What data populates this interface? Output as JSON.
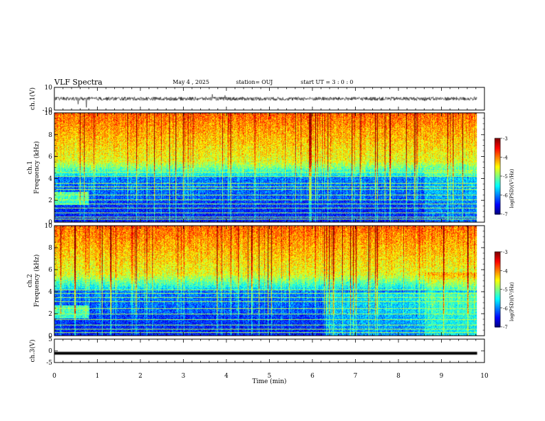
{
  "header": {
    "title": "VLF Spectra",
    "date": "May 4  , 2025",
    "station": "station= OUJ",
    "start": "start  UT =   3 : 0  : 0"
  },
  "colors": {
    "spectrum_low": "#00008b",
    "spectrum_mid": "#00ff80",
    "spectrum_high": "#ff0000",
    "trace": "#000000"
  },
  "chart_data": [
    {
      "type": "line",
      "panel": "ch1-waveform",
      "ylabel": "ch.1(V)",
      "ylim": [
        -10,
        10
      ],
      "yticks": [
        "10",
        "-10"
      ],
      "xlim": [
        0,
        10
      ],
      "description_series": [
        {
          "x": [
            0,
            9.83
          ],
          "y": [
            0,
            0
          ]
        }
      ]
    },
    {
      "type": "heatmap",
      "panel": "ch1-spectrogram",
      "ylabel": "ch.1\nFrequency (kHz)",
      "ylim": [
        0,
        10
      ],
      "yticks": [
        "0",
        "2",
        "4",
        "6",
        "8",
        "10"
      ],
      "xlim": [
        0,
        10
      ],
      "data_extent_x": 9.83,
      "colorbar": {
        "label": "log(PSD)(V²/Hz)",
        "range": [
          -7,
          -3
        ],
        "ticks": [
          "-3",
          "-4",
          "-5",
          "-6",
          "-7"
        ]
      },
      "lines_khz": [
        0.3,
        0.5,
        0.9,
        1.3,
        1.7,
        2.1,
        2.5,
        3.0,
        3.3,
        3.6,
        4.2,
        4.6
      ]
    },
    {
      "type": "heatmap",
      "panel": "ch2-spectrogram",
      "ylabel": "ch.2\nFrequency (kHz)",
      "ylim": [
        0,
        10
      ],
      "yticks": [
        "0",
        "2",
        "4",
        "6",
        "8",
        "10"
      ],
      "xlim": [
        0,
        10
      ],
      "data_extent_x": 9.83,
      "colorbar": {
        "label": "log(PSD)(V²/Hz)",
        "range": [
          -7,
          -3
        ],
        "ticks": [
          "-3",
          "-4",
          "-5",
          "-6",
          "-7"
        ]
      },
      "lines_khz": [
        0.3,
        0.6,
        1.0,
        1.5,
        2.0,
        2.5,
        3.1,
        3.5,
        3.9,
        4.2
      ]
    },
    {
      "type": "line",
      "panel": "ch3-waveform",
      "ylabel": "ch.3(V)",
      "ylim": [
        -5,
        5
      ],
      "yticks": [
        "5",
        "0",
        "-5"
      ],
      "xlim": [
        0,
        10
      ],
      "series": [
        {
          "x": [
            0,
            9.83
          ],
          "y": [
            -1,
            -1
          ]
        }
      ]
    }
  ],
  "xaxis": {
    "label": "Time  (min)",
    "ticks": [
      "0",
      "1",
      "2",
      "3",
      "4",
      "5",
      "6",
      "7",
      "8",
      "9",
      "10"
    ]
  }
}
